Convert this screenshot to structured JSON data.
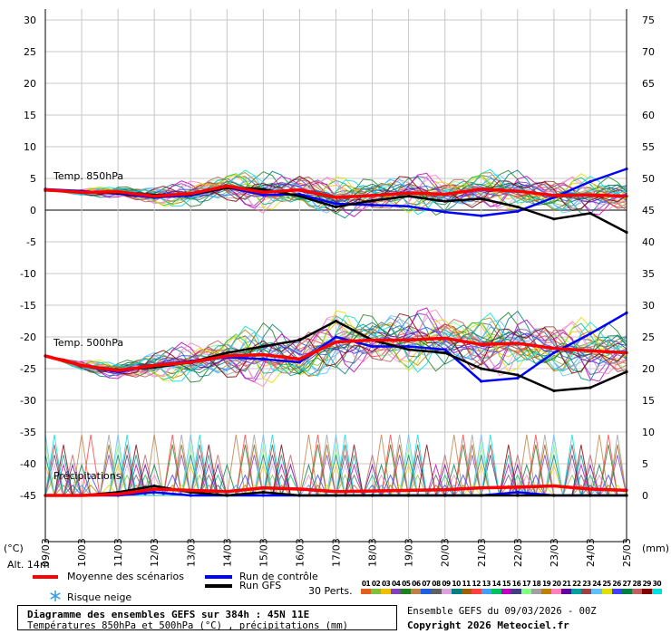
{
  "panel_labels": {
    "t850": "Temp. 850hPa",
    "t500": "Temp. 500hPa",
    "precip": "Précipitations"
  },
  "axis": {
    "left_unit": "(°C)",
    "right_unit": "(mm)",
    "altitude": "Alt. 14m",
    "left_ticks": [
      30,
      25,
      20,
      15,
      10,
      5,
      0,
      -5,
      -10,
      -15,
      -20,
      -25,
      -30,
      -35,
      -40,
      -45
    ],
    "right_ticks": [
      75,
      70,
      65,
      60,
      55,
      50,
      45,
      40,
      35,
      30,
      25,
      20,
      15,
      10,
      5,
      0
    ],
    "dates": [
      "09/03",
      "10/03",
      "11/03",
      "12/03",
      "13/03",
      "14/03",
      "15/03",
      "16/03",
      "17/03",
      "18/03",
      "19/03",
      "20/03",
      "21/03",
      "22/03",
      "23/03",
      "24/03",
      "25/03"
    ]
  },
  "legend": {
    "mean": "Moyenne des scénarios",
    "control": "Run de contrôle",
    "gfs": "Run GFS",
    "snow": "Risque neige",
    "perts": "30 Perts.",
    "pert_ids": [
      "01",
      "02",
      "03",
      "04",
      "05",
      "06",
      "07",
      "08",
      "09",
      "10",
      "11",
      "12",
      "13",
      "14",
      "15",
      "16",
      "17",
      "18",
      "19",
      "20",
      "21",
      "22",
      "23",
      "24",
      "25",
      "26",
      "27",
      "28",
      "29",
      "30"
    ],
    "colors": {
      "mean": "#ff0000",
      "control": "#0000ff",
      "gfs": "#000000"
    }
  },
  "pert_colors": [
    "#e06020",
    "#80c040",
    "#f0c000",
    "#8040c0",
    "#208020",
    "#c08040",
    "#2060e0",
    "#606060",
    "#e0a0e0",
    "#008080",
    "#a06000",
    "#ff4040",
    "#40a0ff",
    "#00c060",
    "#c000c0",
    "#404080",
    "#80ff80",
    "#a0a0a0",
    "#c08000",
    "#ff80c0",
    "#6000a0",
    "#00a0a0",
    "#a04040",
    "#60c0ff",
    "#e0e000",
    "#4040ff",
    "#008040",
    "#c06060",
    "#800000",
    "#00e0e0"
  ],
  "info": {
    "title": "Diagramme des ensembles GEFS sur 384h : 45N 11E",
    "subtitle": "Températures 850hPa et 500hPa (°C) , précipitations (mm)",
    "run": "Ensemble GEFS du 09/03/2026 - 00Z",
    "copyright": "Copyright 2026 Meteociel.fr"
  },
  "chart_data": {
    "type": "line",
    "x": [
      "09/03",
      "10/03",
      "11/03",
      "12/03",
      "13/03",
      "14/03",
      "15/03",
      "16/03",
      "17/03",
      "18/03",
      "19/03",
      "20/03",
      "21/03",
      "22/03",
      "23/03",
      "24/03",
      "25/03"
    ],
    "ylim_left": [
      -45,
      30
    ],
    "ylim_right_mm": [
      0,
      75
    ],
    "series": [
      {
        "name": "Moyenne des scénarios",
        "panel": "t850",
        "values": [
          3.2,
          2.8,
          2.9,
          2.2,
          2.6,
          3.8,
          2.8,
          3.2,
          2.0,
          2.3,
          2.7,
          2.5,
          3.3,
          3.0,
          2.3,
          2.4,
          2.2
        ]
      },
      {
        "name": "Run de contrôle",
        "panel": "t850",
        "values": [
          3.3,
          3.0,
          2.6,
          2.0,
          2.3,
          3.6,
          2.4,
          2.5,
          1.0,
          0.8,
          0.6,
          -0.3,
          -0.9,
          -0.2,
          2.0,
          4.5,
          6.5
        ]
      },
      {
        "name": "Run GFS",
        "panel": "t850",
        "values": [
          3.1,
          2.9,
          2.7,
          2.4,
          2.5,
          3.5,
          3.3,
          2.2,
          0.5,
          1.5,
          2.2,
          1.4,
          1.8,
          0.5,
          -1.4,
          -0.5,
          -3.5
        ]
      },
      {
        "name": "Moyenne des scénarios",
        "panel": "t500",
        "values": [
          -23.0,
          -24.5,
          -25.3,
          -24.5,
          -24.0,
          -23.0,
          -22.8,
          -23.5,
          -20.8,
          -20.5,
          -20.5,
          -20.2,
          -21.2,
          -21.0,
          -21.8,
          -22.2,
          -22.5
        ]
      },
      {
        "name": "Run de contrôle",
        "panel": "t500",
        "values": [
          -23.0,
          -24.5,
          -25.5,
          -24.5,
          -23.8,
          -23.2,
          -23.5,
          -24.0,
          -20.0,
          -21.5,
          -21.5,
          -22.0,
          -27.0,
          -26.5,
          -22.5,
          -19.5,
          -16.2
        ]
      },
      {
        "name": "Run GFS",
        "panel": "t500",
        "values": [
          -23.0,
          -24.5,
          -25.2,
          -24.8,
          -24.0,
          -22.5,
          -21.5,
          -20.5,
          -17.5,
          -20.5,
          -22.0,
          -22.5,
          -25.0,
          -26.0,
          -28.5,
          -28.0,
          -25.5
        ]
      },
      {
        "name": "Moyenne des scénarios",
        "panel": "precip",
        "values": [
          0,
          0,
          0.2,
          1.0,
          0.8,
          0.6,
          1.2,
          1.0,
          0.6,
          0.7,
          0.8,
          0.9,
          1.2,
          1.3,
          1.5,
          1.0,
          0.8
        ]
      },
      {
        "name": "Run de contrôle",
        "panel": "precip",
        "values": [
          0,
          0,
          0,
          0.5,
          0,
          0,
          0,
          0,
          0,
          0,
          0,
          0,
          0,
          0.5,
          0,
          0,
          0
        ]
      },
      {
        "name": "Run GFS",
        "panel": "precip",
        "values": [
          0,
          0,
          0.5,
          1.5,
          0.5,
          0,
          0.5,
          0,
          0,
          0,
          0,
          0,
          0,
          0,
          0,
          0,
          0
        ]
      }
    ],
    "perturbation_count": 30
  }
}
